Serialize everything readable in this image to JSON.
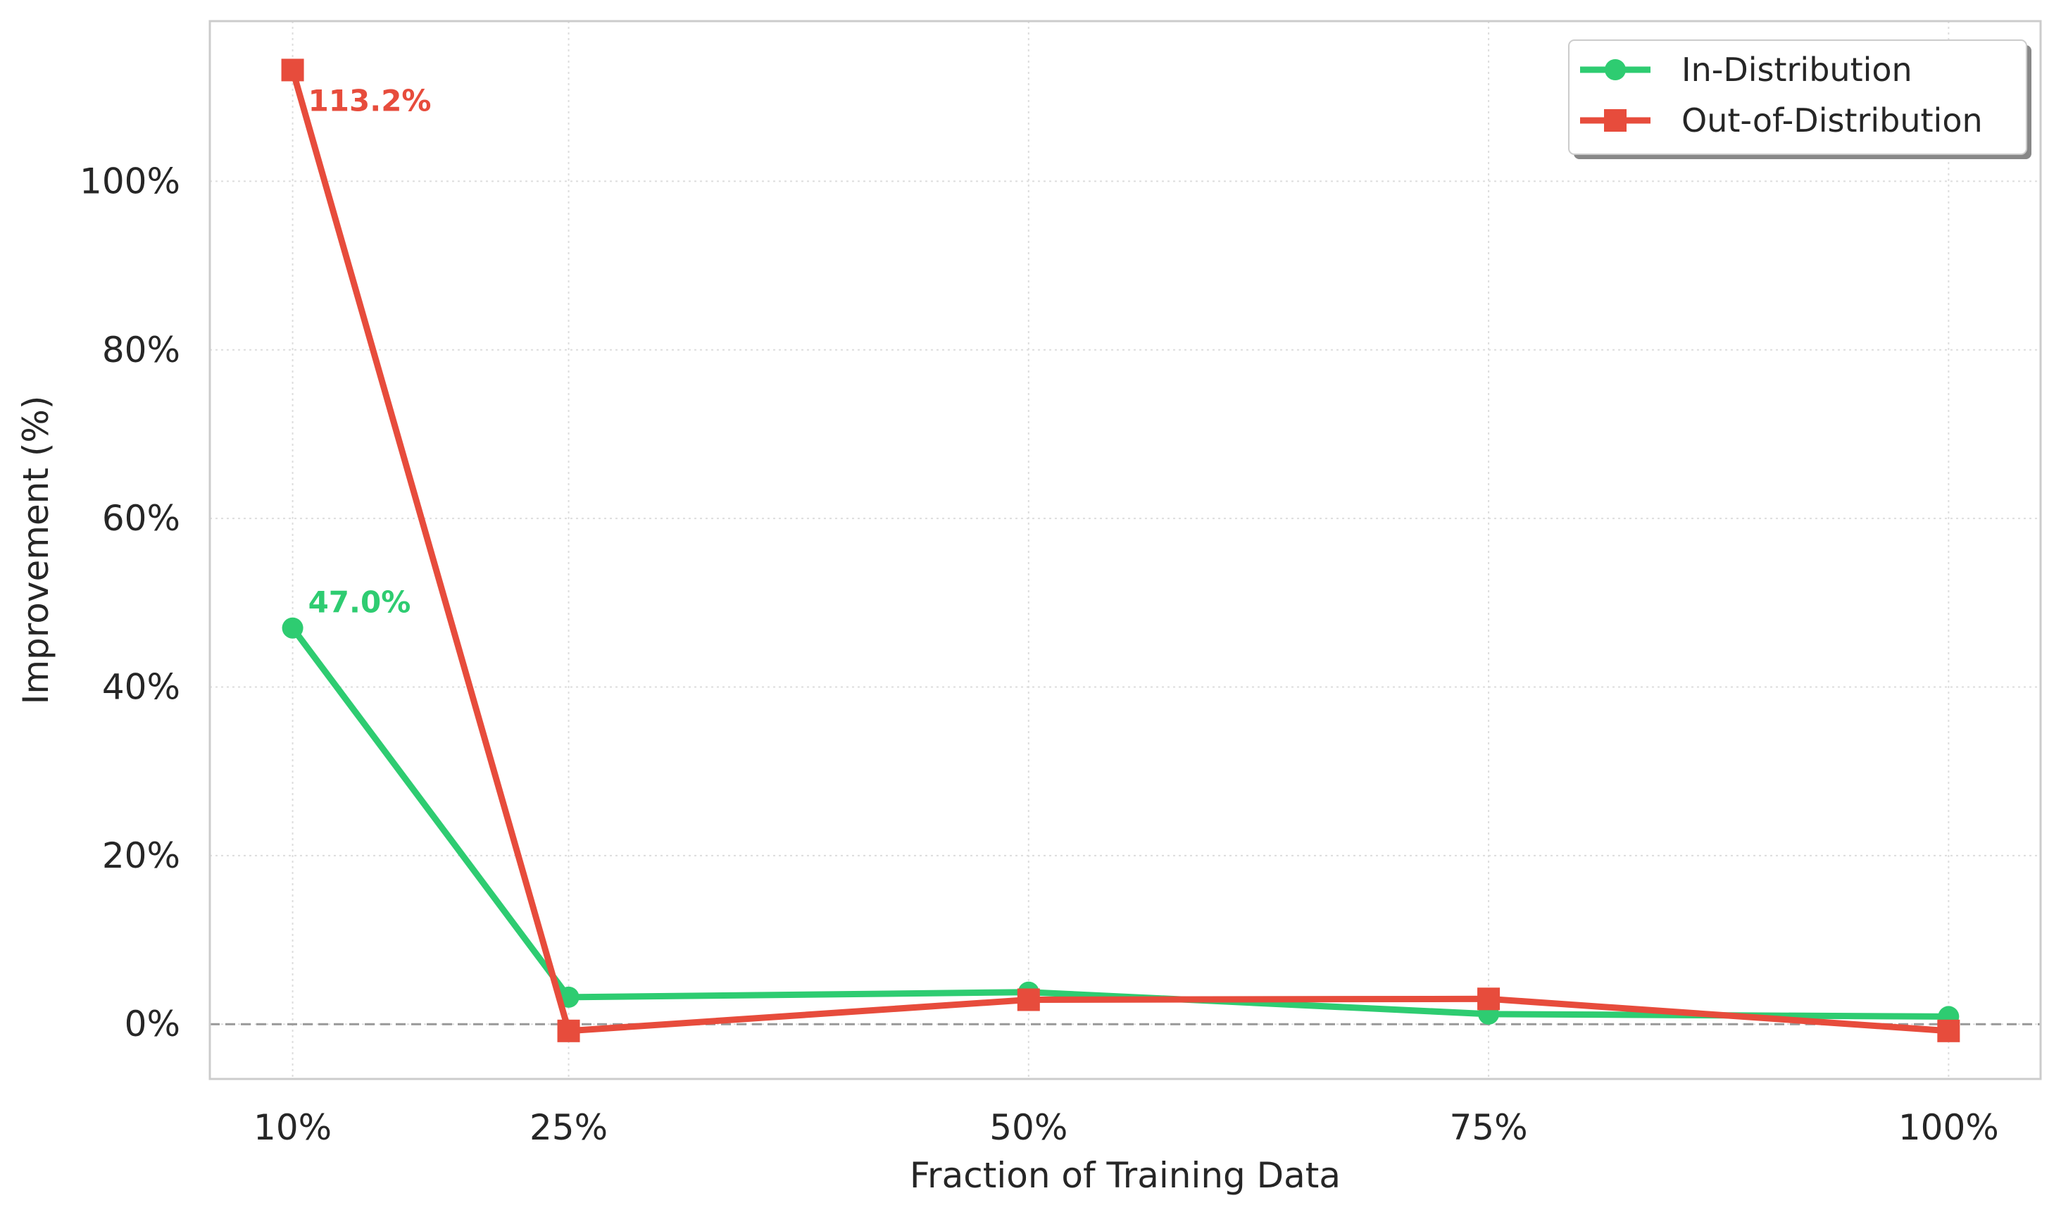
{
  "chart_data": {
    "type": "line",
    "title": "",
    "xlabel": "Fraction of Training Data",
    "ylabel": "Improvement (%)",
    "x": [
      10,
      25,
      50,
      75,
      100
    ],
    "x_tick_labels": [
      "10%",
      "25%",
      "50%",
      "75%",
      "100%"
    ],
    "y_ticks": [
      0,
      20,
      40,
      60,
      80,
      100
    ],
    "y_tick_labels": [
      "0%",
      "20%",
      "40%",
      "60%",
      "80%",
      "100%"
    ],
    "xlim": [
      5.5,
      105
    ],
    "ylim": [
      -6.5,
      119
    ],
    "grid": true,
    "reference_line": {
      "y": 0,
      "style": "dashed",
      "color": "#999999"
    },
    "legend_position": "top-right",
    "series": [
      {
        "name": "In-Distribution",
        "color": "#2ecc71",
        "marker": "circle",
        "values": [
          47.0,
          3.2,
          3.8,
          1.2,
          0.9
        ]
      },
      {
        "name": "Out-of-Distribution",
        "color": "#e74c3c",
        "marker": "square",
        "values": [
          113.2,
          -0.8,
          2.9,
          3.0,
          -0.8
        ]
      }
    ],
    "annotations": [
      {
        "series": 0,
        "x": 10,
        "y": 47.0,
        "text": "47.0%",
        "color": "#2ecc71"
      },
      {
        "series": 1,
        "x": 10,
        "y": 113.2,
        "text": "113.2%",
        "color": "#e74c3c"
      }
    ]
  }
}
